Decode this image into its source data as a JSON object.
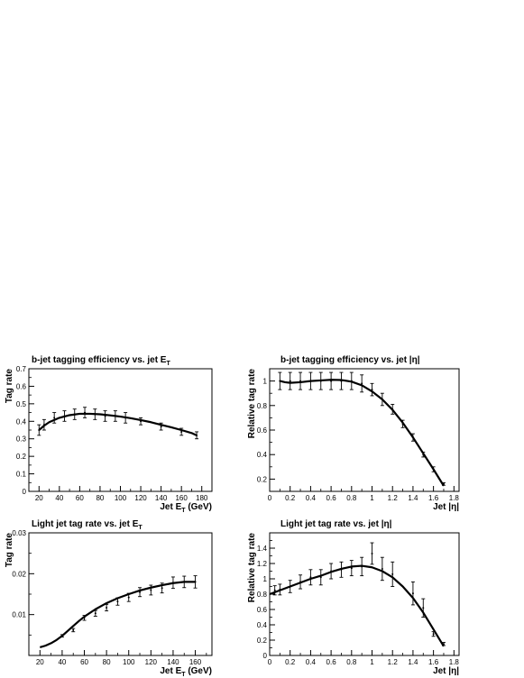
{
  "chart_data": [
    {
      "id": "p1",
      "type": "scatter",
      "title": "b-jet tagging efficiency vs. jet E",
      "title_sub": "T",
      "xlabel": "Jet E",
      "xlabel_sub": "T",
      "xlabel_unit": " (GeV)",
      "ylabel": "Tag rate",
      "xlim": [
        10,
        190
      ],
      "ylim": [
        0,
        0.7
      ],
      "xticks": [
        20,
        40,
        60,
        80,
        100,
        120,
        140,
        160,
        180
      ],
      "xtick_labels": [
        "20",
        "40",
        "60",
        "80",
        "100",
        "120",
        "140",
        "160",
        "180"
      ],
      "yticks": [
        0,
        0.1,
        0.2,
        0.3,
        0.4,
        0.5,
        0.6,
        0.7
      ],
      "ytick_labels": [
        "0",
        "0.1",
        "0.2",
        "0.3",
        "0.4",
        "0.5",
        "0.6",
        "0.7"
      ],
      "points": [
        {
          "x": 20,
          "y": 0.35,
          "err": 0.03
        },
        {
          "x": 25,
          "y": 0.38,
          "err": 0.03
        },
        {
          "x": 35,
          "y": 0.42,
          "err": 0.03
        },
        {
          "x": 45,
          "y": 0.43,
          "err": 0.03
        },
        {
          "x": 55,
          "y": 0.44,
          "err": 0.03
        },
        {
          "x": 65,
          "y": 0.45,
          "err": 0.03
        },
        {
          "x": 75,
          "y": 0.44,
          "err": 0.03
        },
        {
          "x": 85,
          "y": 0.43,
          "err": 0.03
        },
        {
          "x": 95,
          "y": 0.43,
          "err": 0.03
        },
        {
          "x": 105,
          "y": 0.42,
          "err": 0.03
        },
        {
          "x": 120,
          "y": 0.4,
          "err": 0.02
        },
        {
          "x": 140,
          "y": 0.37,
          "err": 0.02
        },
        {
          "x": 160,
          "y": 0.34,
          "err": 0.02
        },
        {
          "x": 175,
          "y": 0.32,
          "err": 0.02
        }
      ],
      "curve": [
        [
          20,
          0.35
        ],
        [
          25,
          0.375
        ],
        [
          30,
          0.395
        ],
        [
          40,
          0.42
        ],
        [
          50,
          0.435
        ],
        [
          60,
          0.443
        ],
        [
          70,
          0.443
        ],
        [
          80,
          0.44
        ],
        [
          90,
          0.434
        ],
        [
          100,
          0.427
        ],
        [
          110,
          0.418
        ],
        [
          120,
          0.407
        ],
        [
          130,
          0.395
        ],
        [
          140,
          0.38
        ],
        [
          150,
          0.366
        ],
        [
          160,
          0.35
        ],
        [
          170,
          0.333
        ],
        [
          175,
          0.32
        ]
      ]
    },
    {
      "id": "p2",
      "type": "scatter",
      "title": "b-jet tagging efficiency vs. jet |η|",
      "title_sub": "",
      "xlabel": "Jet |η|",
      "xlabel_sub": "",
      "xlabel_unit": "",
      "ylabel": "Relative tag rate",
      "xlim": [
        0,
        1.85
      ],
      "ylim": [
        0.1,
        1.1
      ],
      "xticks": [
        0,
        0.2,
        0.4,
        0.6,
        0.8,
        1.0,
        1.2,
        1.4,
        1.6,
        1.8
      ],
      "xtick_labels": [
        "0",
        "0.2",
        "0.4",
        "0.6",
        "0.8",
        "1",
        "1.2",
        "1.4",
        "1.6",
        "1.8"
      ],
      "yticks": [
        0.2,
        0.4,
        0.6,
        0.8,
        1.0
      ],
      "ytick_labels": [
        "0.2",
        "0.4",
        "0.6",
        "0.8",
        "1"
      ],
      "points": [
        {
          "x": 0.1,
          "y": 1.0,
          "err": 0.07
        },
        {
          "x": 0.2,
          "y": 1.0,
          "err": 0.07
        },
        {
          "x": 0.3,
          "y": 1.0,
          "err": 0.07
        },
        {
          "x": 0.4,
          "y": 1.0,
          "err": 0.07
        },
        {
          "x": 0.5,
          "y": 1.0,
          "err": 0.07
        },
        {
          "x": 0.6,
          "y": 1.0,
          "err": 0.07
        },
        {
          "x": 0.7,
          "y": 1.0,
          "err": 0.07
        },
        {
          "x": 0.8,
          "y": 1.0,
          "err": 0.07
        },
        {
          "x": 0.9,
          "y": 0.98,
          "err": 0.07
        },
        {
          "x": 1.0,
          "y": 0.93,
          "err": 0.05
        },
        {
          "x": 1.1,
          "y": 0.85,
          "err": 0.05
        },
        {
          "x": 1.2,
          "y": 0.77,
          "err": 0.04
        },
        {
          "x": 1.3,
          "y": 0.65,
          "err": 0.03
        },
        {
          "x": 1.4,
          "y": 0.54,
          "err": 0.03
        },
        {
          "x": 1.5,
          "y": 0.4,
          "err": 0.02
        },
        {
          "x": 1.6,
          "y": 0.28,
          "err": 0.02
        },
        {
          "x": 1.7,
          "y": 0.16,
          "err": 0.01
        }
      ],
      "curve": [
        [
          0.1,
          1.0
        ],
        [
          0.15,
          0.99
        ],
        [
          0.2,
          0.985
        ],
        [
          0.3,
          0.99
        ],
        [
          0.4,
          1.0
        ],
        [
          0.5,
          1.005
        ],
        [
          0.6,
          1.01
        ],
        [
          0.7,
          1.008
        ],
        [
          0.8,
          0.995
        ],
        [
          0.9,
          0.965
        ],
        [
          1.0,
          0.915
        ],
        [
          1.1,
          0.85
        ],
        [
          1.2,
          0.765
        ],
        [
          1.3,
          0.66
        ],
        [
          1.4,
          0.54
        ],
        [
          1.5,
          0.41
        ],
        [
          1.6,
          0.28
        ],
        [
          1.7,
          0.145
        ]
      ]
    },
    {
      "id": "p3",
      "type": "scatter",
      "title": "Light jet tag rate vs. jet E",
      "title_sub": "T",
      "xlabel": "Jet E",
      "xlabel_sub": "T",
      "xlabel_unit": " (GeV)",
      "ylabel": "Tag rate",
      "xlim": [
        10,
        175
      ],
      "ylim": [
        0,
        0.03
      ],
      "xticks": [
        20,
        40,
        60,
        80,
        100,
        120,
        140,
        160
      ],
      "xtick_labels": [
        "20",
        "40",
        "60",
        "80",
        "100",
        "120",
        "140",
        "160"
      ],
      "yticks": [
        0.01,
        0.02,
        0.03
      ],
      "ytick_labels": [
        "0.01",
        "0.02",
        "0.03"
      ],
      "points": [
        {
          "x": 40,
          "y": 0.0048,
          "err": 0.0003
        },
        {
          "x": 50,
          "y": 0.0062,
          "err": 0.0004
        },
        {
          "x": 60,
          "y": 0.0092,
          "err": 0.0006
        },
        {
          "x": 70,
          "y": 0.0103,
          "err": 0.0007
        },
        {
          "x": 80,
          "y": 0.0117,
          "err": 0.0008
        },
        {
          "x": 90,
          "y": 0.0132,
          "err": 0.0009
        },
        {
          "x": 100,
          "y": 0.0142,
          "err": 0.001
        },
        {
          "x": 110,
          "y": 0.0155,
          "err": 0.0011
        },
        {
          "x": 120,
          "y": 0.016,
          "err": 0.0012
        },
        {
          "x": 130,
          "y": 0.0165,
          "err": 0.0012
        },
        {
          "x": 140,
          "y": 0.0178,
          "err": 0.0014
        },
        {
          "x": 150,
          "y": 0.018,
          "err": 0.0014
        },
        {
          "x": 160,
          "y": 0.018,
          "err": 0.0015
        }
      ],
      "curve": [
        [
          20,
          0.002
        ],
        [
          25,
          0.0024
        ],
        [
          30,
          0.003
        ],
        [
          35,
          0.0038
        ],
        [
          40,
          0.0048
        ],
        [
          45,
          0.006
        ],
        [
          50,
          0.0072
        ],
        [
          55,
          0.0084
        ],
        [
          60,
          0.0095
        ],
        [
          70,
          0.0113
        ],
        [
          80,
          0.0128
        ],
        [
          90,
          0.014
        ],
        [
          100,
          0.015
        ],
        [
          110,
          0.0159
        ],
        [
          120,
          0.0166
        ],
        [
          130,
          0.0172
        ],
        [
          140,
          0.0177
        ],
        [
          150,
          0.018
        ],
        [
          160,
          0.018
        ]
      ]
    },
    {
      "id": "p4",
      "type": "scatter",
      "title": "Light jet tag rate vs. jet |η|",
      "title_sub": "",
      "xlabel": "Jet |η|",
      "xlabel_sub": "",
      "xlabel_unit": "",
      "ylabel": "Relative tag rate",
      "xlim": [
        0,
        1.85
      ],
      "ylim": [
        0,
        1.6
      ],
      "xticks": [
        0,
        0.2,
        0.4,
        0.6,
        0.8,
        1.0,
        1.2,
        1.4,
        1.6,
        1.8
      ],
      "xtick_labels": [
        "0",
        "0.2",
        "0.4",
        "0.6",
        "0.8",
        "1",
        "1.2",
        "1.4",
        "1.6",
        "1.8"
      ],
      "yticks": [
        0,
        0.2,
        0.4,
        0.6,
        0.8,
        1.0,
        1.2,
        1.4
      ],
      "ytick_labels": [
        "0",
        "0.2",
        "0.4",
        "0.6",
        "0.8",
        "1",
        "1.2",
        "1.4"
      ],
      "points": [
        {
          "x": 0.05,
          "y": 0.85,
          "err": 0.06
        },
        {
          "x": 0.1,
          "y": 0.86,
          "err": 0.07
        },
        {
          "x": 0.2,
          "y": 0.9,
          "err": 0.08
        },
        {
          "x": 0.3,
          "y": 0.96,
          "err": 0.09
        },
        {
          "x": 0.4,
          "y": 1.02,
          "err": 0.1
        },
        {
          "x": 0.5,
          "y": 1.02,
          "err": 0.1
        },
        {
          "x": 0.6,
          "y": 1.1,
          "err": 0.1
        },
        {
          "x": 0.7,
          "y": 1.12,
          "err": 0.1
        },
        {
          "x": 0.8,
          "y": 1.14,
          "err": 0.1
        },
        {
          "x": 0.9,
          "y": 1.16,
          "err": 0.12
        },
        {
          "x": 1.0,
          "y": 1.33,
          "err": 0.14
        },
        {
          "x": 1.1,
          "y": 1.13,
          "err": 0.15
        },
        {
          "x": 1.2,
          "y": 1.06,
          "err": 0.16
        },
        {
          "x": 1.4,
          "y": 0.81,
          "err": 0.15
        },
        {
          "x": 1.5,
          "y": 0.62,
          "err": 0.12
        },
        {
          "x": 1.6,
          "y": 0.28,
          "err": 0.03
        },
        {
          "x": 1.7,
          "y": 0.15,
          "err": 0.02
        }
      ],
      "curve": [
        [
          0.0,
          0.8
        ],
        [
          0.1,
          0.85
        ],
        [
          0.2,
          0.9
        ],
        [
          0.3,
          0.95
        ],
        [
          0.4,
          1.0
        ],
        [
          0.5,
          1.04
        ],
        [
          0.6,
          1.09
        ],
        [
          0.7,
          1.13
        ],
        [
          0.8,
          1.16
        ],
        [
          0.9,
          1.17
        ],
        [
          1.0,
          1.15
        ],
        [
          1.1,
          1.1
        ],
        [
          1.2,
          1.02
        ],
        [
          1.3,
          0.9
        ],
        [
          1.4,
          0.75
        ],
        [
          1.5,
          0.56
        ],
        [
          1.6,
          0.34
        ],
        [
          1.7,
          0.12
        ]
      ]
    }
  ]
}
